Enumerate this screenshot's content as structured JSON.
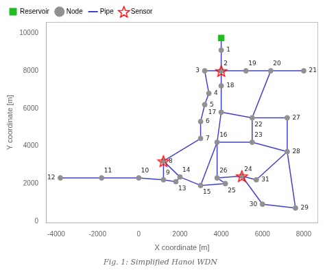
{
  "chart_data": {
    "type": "scatter",
    "title": "Fig. 1: Simplified Hanoi WDN",
    "xlabel": "X coordinate [m]",
    "ylabel": "Y coordinate [m]",
    "xlim": [
      -4500,
      8700
    ],
    "ylim": [
      -100,
      10600
    ],
    "xticks": [
      -4000,
      -2000,
      0,
      2000,
      4000,
      6000,
      8000
    ],
    "yticks": [
      0,
      2000,
      4000,
      6000,
      8000,
      10000
    ],
    "grid": false,
    "legend": "upper left",
    "series": [
      {
        "name": "Reservoir",
        "type": "scatter",
        "marker": "square",
        "color": "#22BB22",
        "x": [
          4000
        ],
        "y": [
          9750
        ]
      },
      {
        "name": "Node",
        "type": "scatter",
        "marker": "circle",
        "color": "#909090",
        "labels": [
          "1",
          "2",
          "3",
          "4",
          "5",
          "6",
          "7",
          "8",
          "9",
          "10",
          "11",
          "12",
          "13",
          "14",
          "15",
          "16",
          "17",
          "18",
          "19",
          "20",
          "21",
          "22",
          "23",
          "24",
          "25",
          "26",
          "27",
          "28",
          "29",
          "30",
          "31"
        ],
        "x": [
          4000,
          4000,
          3200,
          3400,
          3200,
          3000,
          3000,
          1200,
          1200,
          0,
          -1800,
          -3800,
          1800,
          2000,
          3000,
          3800,
          4000,
          4000,
          5200,
          6400,
          8000,
          5500,
          5500,
          5000,
          4200,
          3800,
          7200,
          7200,
          7600,
          6000,
          5700
        ],
        "y": [
          9100,
          8000,
          8000,
          6800,
          6200,
          5300,
          4400,
          3200,
          2200,
          2300,
          2300,
          2300,
          2100,
          2350,
          1900,
          4200,
          5800,
          7200,
          8000,
          8000,
          8000,
          5500,
          4200,
          2400,
          2000,
          2300,
          5500,
          3700,
          700,
          900,
          2200
        ]
      },
      {
        "name": "Pipe",
        "type": "line",
        "line_style": "solid",
        "color": "#4040CC",
        "segments": [
          [
            [
              4000,
              9750
            ],
            [
              4000,
              9100
            ]
          ],
          [
            [
              4000,
              9100
            ],
            [
              4000,
              8000
            ]
          ],
          [
            [
              4000,
              8000
            ],
            [
              3200,
              8000
            ]
          ],
          [
            [
              3200,
              8000
            ],
            [
              3400,
              6800
            ]
          ],
          [
            [
              3400,
              6800
            ],
            [
              3200,
              6200
            ]
          ],
          [
            [
              3200,
              6200
            ],
            [
              3000,
              5300
            ]
          ],
          [
            [
              3000,
              5300
            ],
            [
              3000,
              4400
            ]
          ],
          [
            [
              3000,
              4400
            ],
            [
              1200,
              3200
            ]
          ],
          [
            [
              1200,
              3200
            ],
            [
              1200,
              2200
            ]
          ],
          [
            [
              1200,
              2200
            ],
            [
              0,
              2300
            ]
          ],
          [
            [
              0,
              2300
            ],
            [
              -1800,
              2300
            ]
          ],
          [
            [
              -1800,
              2300
            ],
            [
              -3800,
              2300
            ]
          ],
          [
            [
              1200,
              2200
            ],
            [
              1800,
              2100
            ]
          ],
          [
            [
              1800,
              2100
            ],
            [
              2000,
              2350
            ]
          ],
          [
            [
              2000,
              2350
            ],
            [
              3000,
              1900
            ]
          ],
          [
            [
              3000,
              1900
            ],
            [
              3800,
              4200
            ]
          ],
          [
            [
              3800,
              4200
            ],
            [
              4000,
              5800
            ]
          ],
          [
            [
              4000,
              5800
            ],
            [
              4000,
              7200
            ]
          ],
          [
            [
              4000,
              7200
            ],
            [
              4000,
              8000
            ]
          ],
          [
            [
              4000,
              8000
            ],
            [
              5200,
              8000
            ]
          ],
          [
            [
              5200,
              8000
            ],
            [
              6400,
              8000
            ]
          ],
          [
            [
              6400,
              8000
            ],
            [
              8000,
              8000
            ]
          ],
          [
            [
              4000,
              5800
            ],
            [
              5500,
              5500
            ]
          ],
          [
            [
              5500,
              5500
            ],
            [
              5500,
              4200
            ]
          ],
          [
            [
              5500,
              4200
            ],
            [
              3800,
              4200
            ]
          ],
          [
            [
              5500,
              5500
            ],
            [
              7200,
              5500
            ]
          ],
          [
            [
              7200,
              5500
            ],
            [
              7200,
              3700
            ]
          ],
          [
            [
              7200,
              3700
            ],
            [
              5500,
              4200
            ]
          ],
          [
            [
              3000,
              1900
            ],
            [
              4200,
              2000
            ]
          ],
          [
            [
              4200,
              2000
            ],
            [
              3800,
              2300
            ]
          ],
          [
            [
              3800,
              2300
            ],
            [
              5000,
              2400
            ]
          ],
          [
            [
              5000,
              2400
            ],
            [
              5700,
              2200
            ]
          ],
          [
            [
              5700,
              2200
            ],
            [
              7200,
              3700
            ]
          ],
          [
            [
              5000,
              2400
            ],
            [
              6000,
              900
            ]
          ],
          [
            [
              6000,
              900
            ],
            [
              7600,
              700
            ]
          ],
          [
            [
              7600,
              700
            ],
            [
              7200,
              3700
            ]
          ],
          [
            [
              1200,
              3200
            ],
            [
              2000,
              2350
            ]
          ],
          [
            [
              3800,
              4200
            ],
            [
              3800,
              2300
            ]
          ],
          [
            [
              6400,
              8000
            ],
            [
              5500,
              5500
            ]
          ]
        ]
      },
      {
        "name": "Sensor",
        "type": "scatter",
        "marker": "star",
        "color": "#FF0000",
        "x": [
          4000,
          1200,
          5000
        ],
        "y": [
          8000,
          3200,
          2400
        ]
      }
    ]
  }
}
